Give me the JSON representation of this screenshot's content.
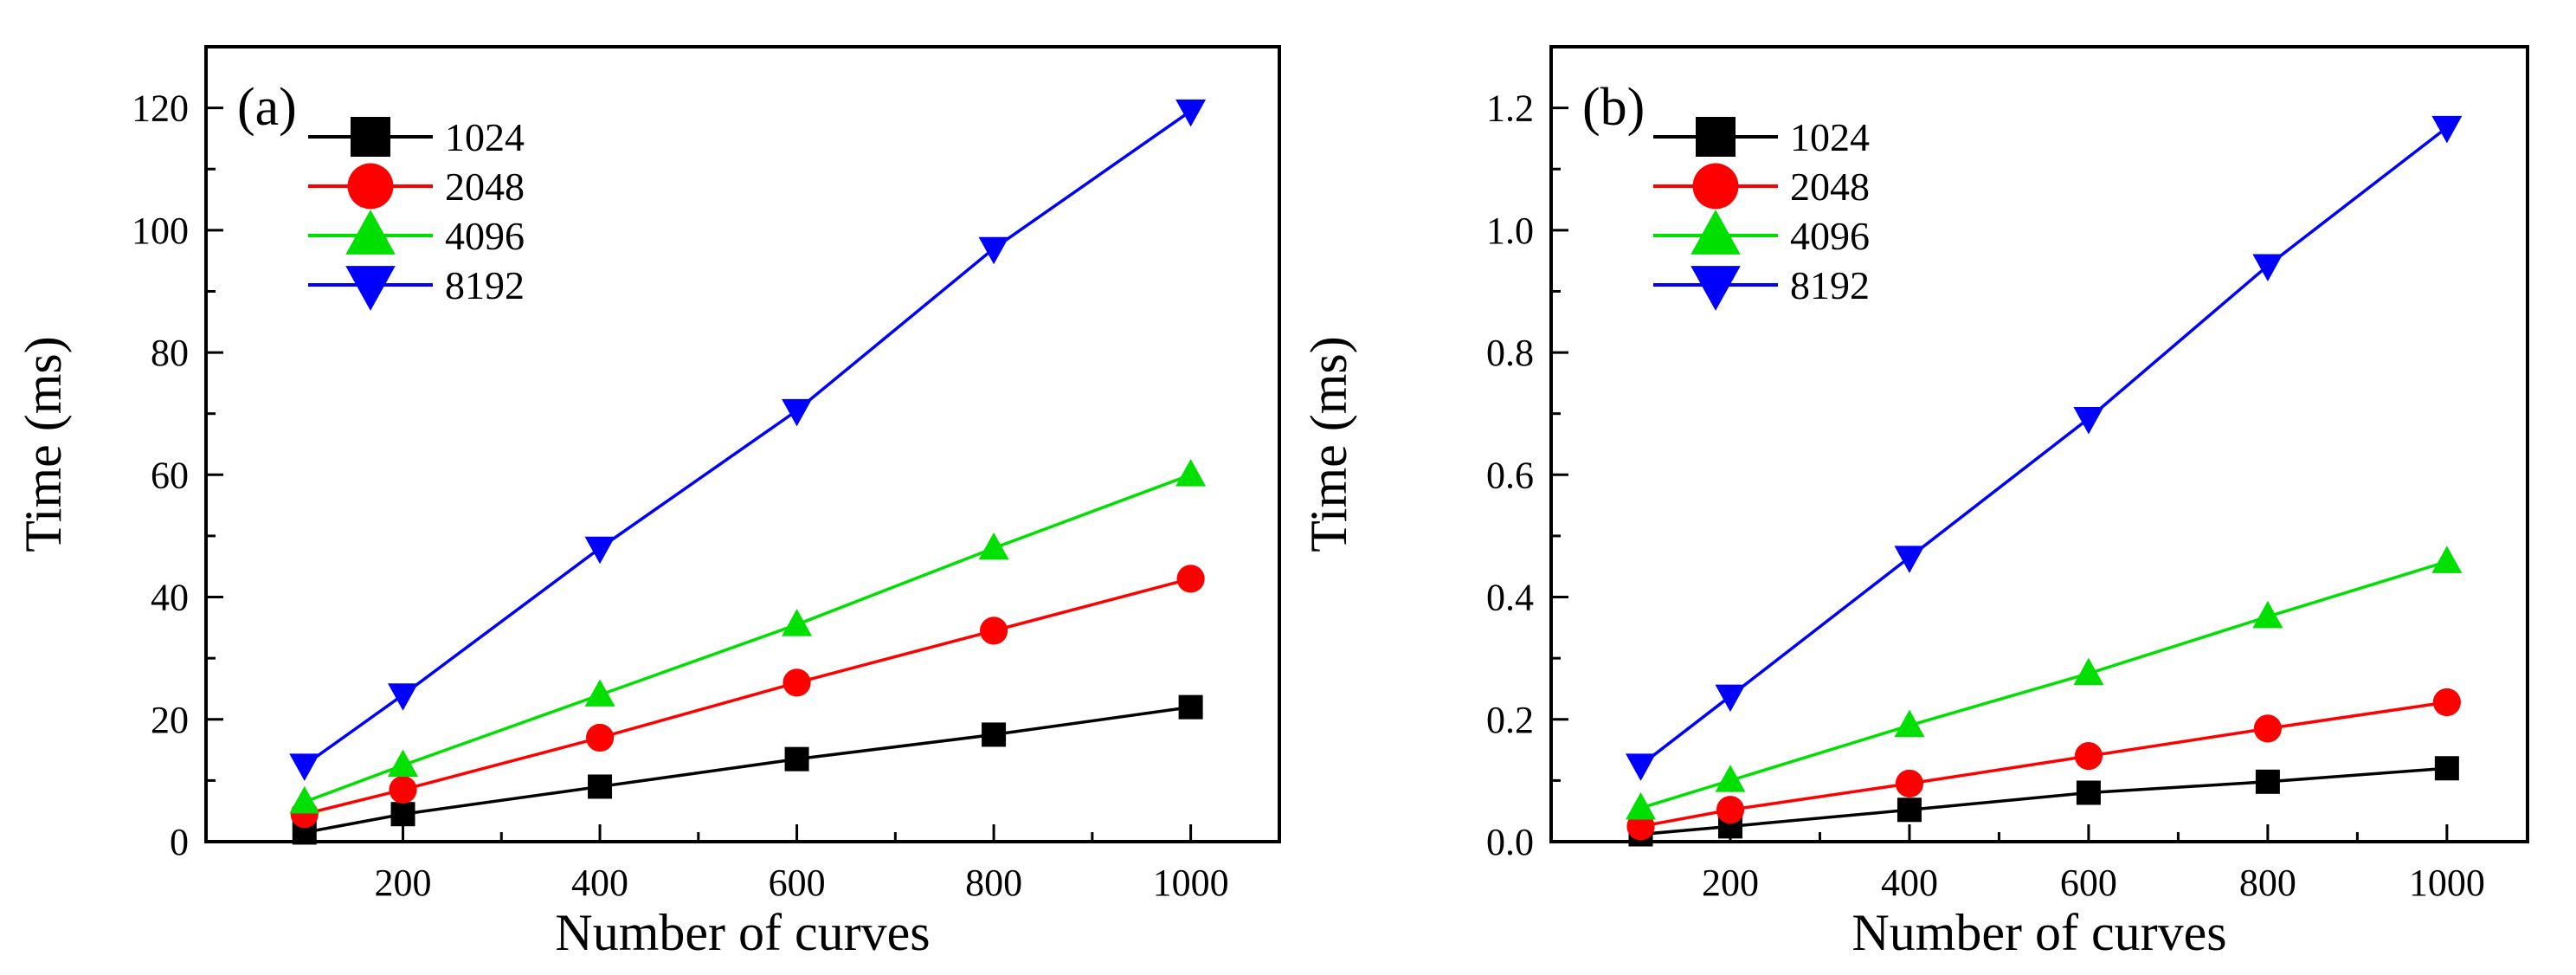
{
  "chart_data": [
    {
      "type": "line",
      "panel_label": "(a)",
      "xlabel": "Number of curves",
      "ylabel": "Time (ms)",
      "xlim": [
        0,
        1090
      ],
      "ylim": [
        0,
        130
      ],
      "xticks": [
        200,
        400,
        600,
        800,
        1000
      ],
      "yticks": [
        0,
        20,
        40,
        60,
        80,
        100,
        120
      ],
      "xtick_labels": [
        "200",
        "400",
        "600",
        "800",
        "1000"
      ],
      "ytick_labels": [
        "0",
        "20",
        "40",
        "60",
        "80",
        "100",
        "120"
      ],
      "x": [
        100,
        200,
        400,
        600,
        800,
        1000
      ],
      "legend_position": "top-left",
      "series": [
        {
          "name": "1024",
          "color": "#000000",
          "marker": "square",
          "values": [
            1.5,
            4.5,
            9,
            13.5,
            17.5,
            22
          ]
        },
        {
          "name": "2048",
          "color": "#ff0000",
          "marker": "circle",
          "values": [
            4.5,
            8.5,
            17,
            26,
            34.5,
            43
          ]
        },
        {
          "name": "4096",
          "color": "#00e000",
          "marker": "triangle-up",
          "values": [
            6.5,
            12.5,
            24,
            35.5,
            48,
            60
          ]
        },
        {
          "name": "8192",
          "color": "#0000ff",
          "marker": "triangle-down",
          "values": [
            12.5,
            24,
            48,
            70.5,
            97,
            119.5
          ]
        }
      ]
    },
    {
      "type": "line",
      "panel_label": "(b)",
      "xlabel": "Number of curves",
      "ylabel": "Time (ms)",
      "xlim": [
        0,
        1090
      ],
      "ylim": [
        0,
        1.3
      ],
      "xticks": [
        200,
        400,
        600,
        800,
        1000
      ],
      "yticks": [
        0,
        0.2,
        0.4,
        0.6,
        0.8,
        1.0,
        1.2
      ],
      "xtick_labels": [
        "200",
        "400",
        "600",
        "800",
        "1000"
      ],
      "ytick_labels": [
        "0.0",
        "0.2",
        "0.4",
        "0.6",
        "0.8",
        "1.0",
        "1.2"
      ],
      "x": [
        100,
        200,
        400,
        600,
        800,
        1000
      ],
      "legend_position": "top-left",
      "series": [
        {
          "name": "1024",
          "color": "#000000",
          "marker": "square",
          "values": [
            0.012,
            0.025,
            0.052,
            0.08,
            0.098,
            0.12
          ]
        },
        {
          "name": "2048",
          "color": "#ff0000",
          "marker": "circle",
          "values": [
            0.025,
            0.052,
            0.095,
            0.14,
            0.185,
            0.228
          ]
        },
        {
          "name": "4096",
          "color": "#00e000",
          "marker": "triangle-up",
          "values": [
            0.055,
            0.1,
            0.19,
            0.275,
            0.368,
            0.458
          ]
        },
        {
          "name": "8192",
          "color": "#0000ff",
          "marker": "triangle-down",
          "values": [
            0.125,
            0.238,
            0.465,
            0.692,
            0.942,
            1.168
          ]
        }
      ]
    }
  ]
}
